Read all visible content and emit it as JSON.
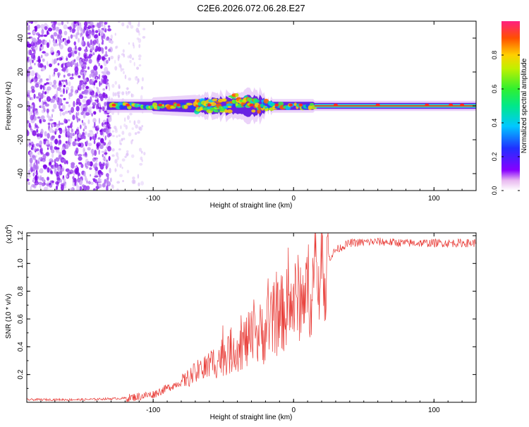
{
  "title": "C2E6.2026.072.06.28.E27",
  "colors": {
    "snr_line": "#e83a35",
    "axis": "#000000",
    "ridge_main": "#ff2020"
  },
  "chart_data": [
    {
      "type": "heatmap",
      "xlabel": "Height of straight line (km)",
      "ylabel": "Frequency (Hz)",
      "xlim": [
        -190,
        130
      ],
      "ylim": [
        -50,
        50
      ],
      "xticks": [
        -100,
        0,
        100
      ],
      "yticks": [
        -40,
        -20,
        0,
        20,
        40
      ],
      "colorbar": {
        "label": "Normalized spectral amplitude",
        "range": [
          0,
          1
        ],
        "ticks": [
          "0.0",
          "0.2",
          "0.4",
          "0.6",
          "0.8"
        ]
      },
      "description_values": {
        "noise_region_x": [
          -190,
          -130
        ],
        "faint_region_x": [
          -130,
          -108
        ],
        "signal_center_freq": 0,
        "signal_start_x": -133
      }
    },
    {
      "type": "line",
      "xlabel": "Height of straight line (km)",
      "ylabel": "SNR (10 * v/v)",
      "scale_label": "(x10",
      "scale_exp": "4",
      "xlim": [
        -190,
        130
      ],
      "ylim": [
        0,
        1.22
      ],
      "xticks": [
        -100,
        0,
        100
      ],
      "yticks": [
        0.2,
        0.4,
        0.6,
        0.8,
        1.0,
        1.2
      ],
      "ytick_labels": [
        "0.2",
        "0.4",
        "0.6",
        "0.8",
        "1.0",
        "1.2"
      ],
      "envelope": [
        [
          -190,
          0.02
        ],
        [
          -150,
          0.02
        ],
        [
          -120,
          0.03
        ],
        [
          -100,
          0.06
        ],
        [
          -80,
          0.15
        ],
        [
          -60,
          0.28
        ],
        [
          -40,
          0.42
        ],
        [
          -25,
          0.5
        ],
        [
          -15,
          0.6
        ],
        [
          -5,
          0.7
        ],
        [
          5,
          0.8
        ],
        [
          15,
          0.88
        ],
        [
          20,
          0.97
        ],
        [
          30,
          1.1
        ],
        [
          40,
          1.15
        ],
        [
          60,
          1.16
        ],
        [
          80,
          1.15
        ],
        [
          100,
          1.15
        ],
        [
          130,
          1.15
        ]
      ]
    }
  ]
}
